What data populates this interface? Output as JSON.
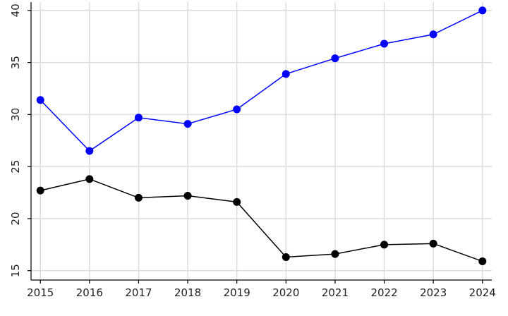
{
  "chart_data": {
    "type": "line",
    "x": [
      2015,
      2016,
      2017,
      2018,
      2019,
      2020,
      2021,
      2022,
      2023,
      2024
    ],
    "series": [
      {
        "color": "#0000ff",
        "values": [
          31.4,
          26.5,
          29.7,
          29.1,
          30.5,
          33.9,
          35.4,
          36.8,
          37.7,
          40.0
        ]
      },
      {
        "color": "#000000",
        "values": [
          22.7,
          23.8,
          22.0,
          22.2,
          21.6,
          16.3,
          16.6,
          17.5,
          17.6,
          15.9
        ]
      }
    ],
    "xlim": [
      2014.81,
      2024.19
    ],
    "xticks": [
      2015,
      2016,
      2017,
      2018,
      2019,
      2020,
      2021,
      2022,
      2023,
      2024
    ],
    "ylim": [
      14.1,
      40.8
    ],
    "yticks": [
      15,
      20,
      25,
      30,
      35,
      40
    ],
    "grid": true
  }
}
